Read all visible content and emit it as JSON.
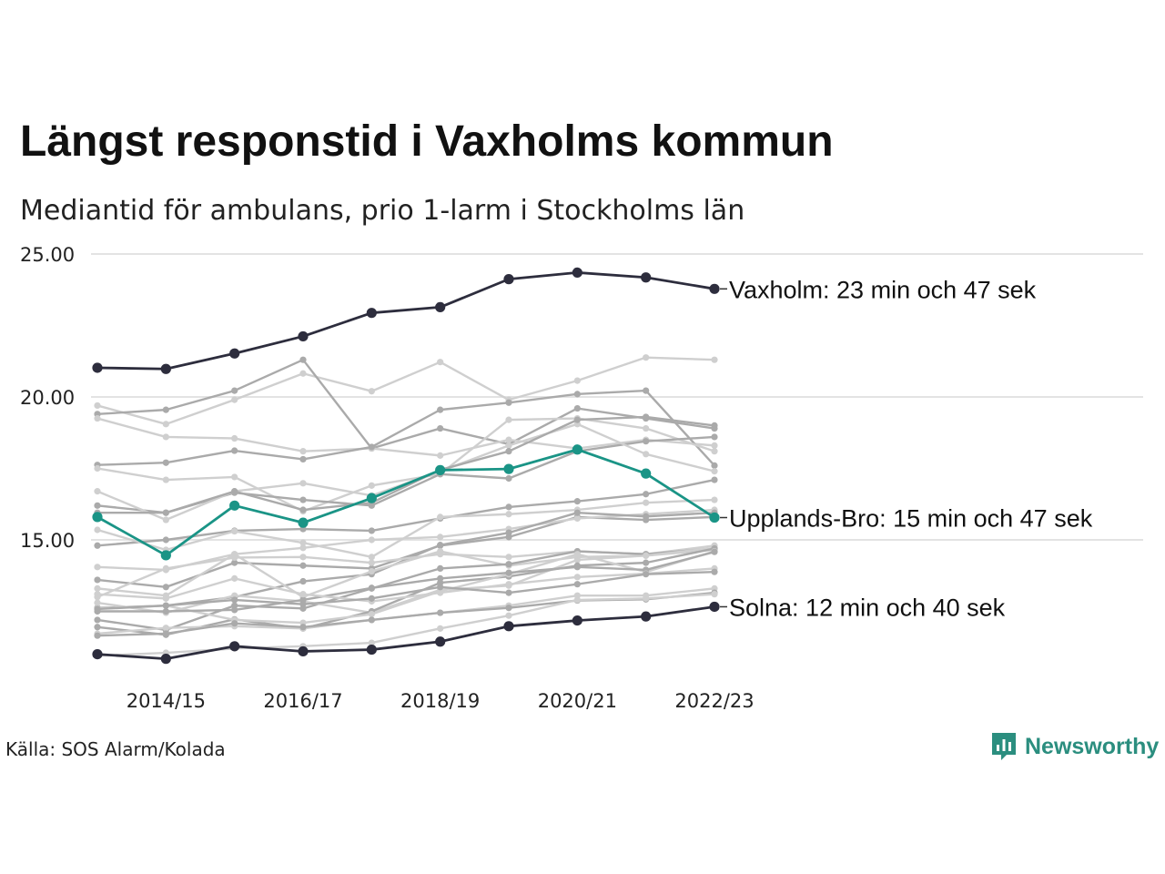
{
  "chart_data": {
    "type": "line",
    "title": "Längst responstid i Vaxholms kommun",
    "subtitle": "Mediantid för ambulans, prio 1-larm i Stockholms län",
    "source": "Källa: SOS Alarm/Kolada",
    "brand": "Newsworthy",
    "xlabel": "",
    "ylabel": "",
    "x": [
      "2013/14",
      "2014/15",
      "2015/16",
      "2016/17",
      "2017/18",
      "2018/19",
      "2019/20",
      "2020/21",
      "2021/22",
      "2022/23"
    ],
    "x_tick_labels": [
      "2014/15",
      "2016/17",
      "2018/19",
      "2020/21",
      "2022/23"
    ],
    "y_ticks": [
      "15.00",
      "20.00",
      "25.00"
    ],
    "ylim": [
      10.5,
      25.5
    ],
    "grid": "horizontal",
    "colors": {
      "highlight_dark": "#2d2d3d",
      "highlight_teal": "#1a9486",
      "context_light": "#cfcfcf",
      "context_mid": "#aaaaaa",
      "gridline": "#e3e3e3",
      "brand": "#2b8e7f"
    },
    "highlighted": [
      {
        "label": "Vaxholm: 23 min och 47 sek",
        "color": "#2d2d3d",
        "values": [
          21.02,
          20.98,
          21.52,
          22.12,
          22.94,
          23.14,
          24.12,
          24.35,
          24.18,
          23.78
        ]
      },
      {
        "label": "Upplands-Bro: 15 min och 47 sek",
        "color": "#1a9486",
        "values": [
          15.8,
          14.46,
          16.2,
          15.6,
          16.46,
          17.44,
          17.48,
          18.16,
          17.32,
          15.78
        ]
      },
      {
        "label": "Solna: 12 min och 40 sek",
        "color": "#2d2d3d",
        "values": [
          11.0,
          10.84,
          11.28,
          11.1,
          11.16,
          11.44,
          11.98,
          12.18,
          12.32,
          12.66
        ]
      }
    ],
    "context_series": [
      {
        "tone": "light",
        "values": [
          19.7,
          19.05,
          19.9,
          20.82,
          20.2,
          21.22,
          19.9,
          20.57,
          21.38,
          21.3
        ]
      },
      {
        "tone": "mid",
        "values": [
          19.4,
          19.55,
          20.22,
          21.3,
          18.2,
          18.9,
          18.35,
          19.6,
          19.25,
          18.9
        ]
      },
      {
        "tone": "light",
        "values": [
          19.25,
          18.6,
          18.55,
          18.1,
          18.2,
          17.95,
          18.5,
          18.2,
          18.5,
          18.3
        ]
      },
      {
        "tone": "mid",
        "values": [
          17.62,
          17.7,
          18.12,
          17.82,
          18.25,
          19.55,
          19.8,
          20.1,
          20.22,
          17.6
        ]
      },
      {
        "tone": "light",
        "values": [
          17.5,
          17.1,
          17.2,
          16.0,
          16.9,
          17.3,
          19.2,
          19.25,
          18.9,
          18.1
        ]
      },
      {
        "tone": "mid",
        "values": [
          16.2,
          15.95,
          16.65,
          16.4,
          16.2,
          17.3,
          17.15,
          18.1,
          18.45,
          18.6
        ]
      },
      {
        "tone": "light",
        "values": [
          16.7,
          15.7,
          16.7,
          16.98,
          16.55,
          17.4,
          18.3,
          19.05,
          18.0,
          17.4
        ]
      },
      {
        "tone": "mid",
        "values": [
          15.95,
          15.95,
          16.7,
          16.05,
          16.3,
          17.45,
          18.1,
          19.2,
          19.3,
          19.0
        ]
      },
      {
        "tone": "mid",
        "values": [
          14.8,
          15.0,
          15.32,
          15.38,
          15.32,
          15.75,
          16.15,
          16.35,
          16.6,
          17.1
        ]
      },
      {
        "tone": "light",
        "values": [
          15.35,
          14.65,
          15.3,
          14.9,
          14.4,
          15.8,
          15.9,
          16.05,
          16.3,
          16.4
        ]
      },
      {
        "tone": "mid",
        "values": [
          13.6,
          13.35,
          14.2,
          14.1,
          14.0,
          14.8,
          15.1,
          15.8,
          15.7,
          15.8
        ]
      },
      {
        "tone": "light",
        "values": [
          14.05,
          13.95,
          14.5,
          14.72,
          15.0,
          15.1,
          15.38,
          15.75,
          15.9,
          16.05
        ]
      },
      {
        "tone": "mid",
        "values": [
          12.62,
          12.7,
          13.0,
          13.55,
          13.8,
          14.82,
          15.25,
          15.95,
          15.82,
          15.95
        ]
      },
      {
        "tone": "light",
        "values": [
          13.0,
          14.0,
          14.38,
          14.4,
          14.2,
          14.5,
          14.4,
          14.6,
          14.5,
          14.8
        ]
      },
      {
        "tone": "light",
        "values": [
          13.3,
          13.05,
          14.5,
          13.0,
          13.9,
          14.6,
          14.1,
          14.4,
          14.45,
          14.65
        ]
      },
      {
        "tone": "mid",
        "values": [
          12.2,
          11.85,
          12.7,
          12.6,
          13.3,
          14.0,
          14.15,
          14.6,
          14.5,
          14.7
        ]
      },
      {
        "tone": "light",
        "values": [
          12.8,
          12.45,
          13.05,
          12.85,
          12.45,
          13.25,
          13.4,
          14.3,
          14.45,
          14.72
        ]
      },
      {
        "tone": "mid",
        "values": [
          11.95,
          11.68,
          12.22,
          11.9,
          12.5,
          13.5,
          13.72,
          14.1,
          14.2,
          14.7
        ]
      },
      {
        "tone": "light",
        "values": [
          12.6,
          12.7,
          12.2,
          12.1,
          12.4,
          13.2,
          13.8,
          14.5,
          13.88,
          14.6
        ]
      },
      {
        "tone": "mid",
        "values": [
          12.5,
          12.5,
          12.55,
          12.9,
          13.32,
          13.65,
          13.85,
          14.05,
          13.95,
          14.58
        ]
      },
      {
        "tone": "light",
        "values": [
          13.1,
          12.95,
          13.65,
          13.1,
          12.85,
          13.15,
          13.45,
          13.7,
          13.82,
          14.0
        ]
      },
      {
        "tone": "mid",
        "values": [
          12.58,
          12.7,
          12.9,
          12.75,
          12.95,
          13.35,
          13.15,
          13.45,
          13.8,
          13.88
        ]
      },
      {
        "tone": "light",
        "values": [
          11.72,
          11.92,
          11.98,
          11.9,
          12.2,
          12.45,
          12.7,
          13.05,
          13.05,
          13.3
        ]
      },
      {
        "tone": "mid",
        "values": [
          11.65,
          11.72,
          12.08,
          11.95,
          12.2,
          12.45,
          12.62,
          12.88,
          12.92,
          13.15
        ]
      },
      {
        "tone": "light",
        "values": [
          10.95,
          11.05,
          11.2,
          11.28,
          11.4,
          11.9,
          12.35,
          12.9,
          12.95,
          13.1
        ]
      }
    ]
  }
}
